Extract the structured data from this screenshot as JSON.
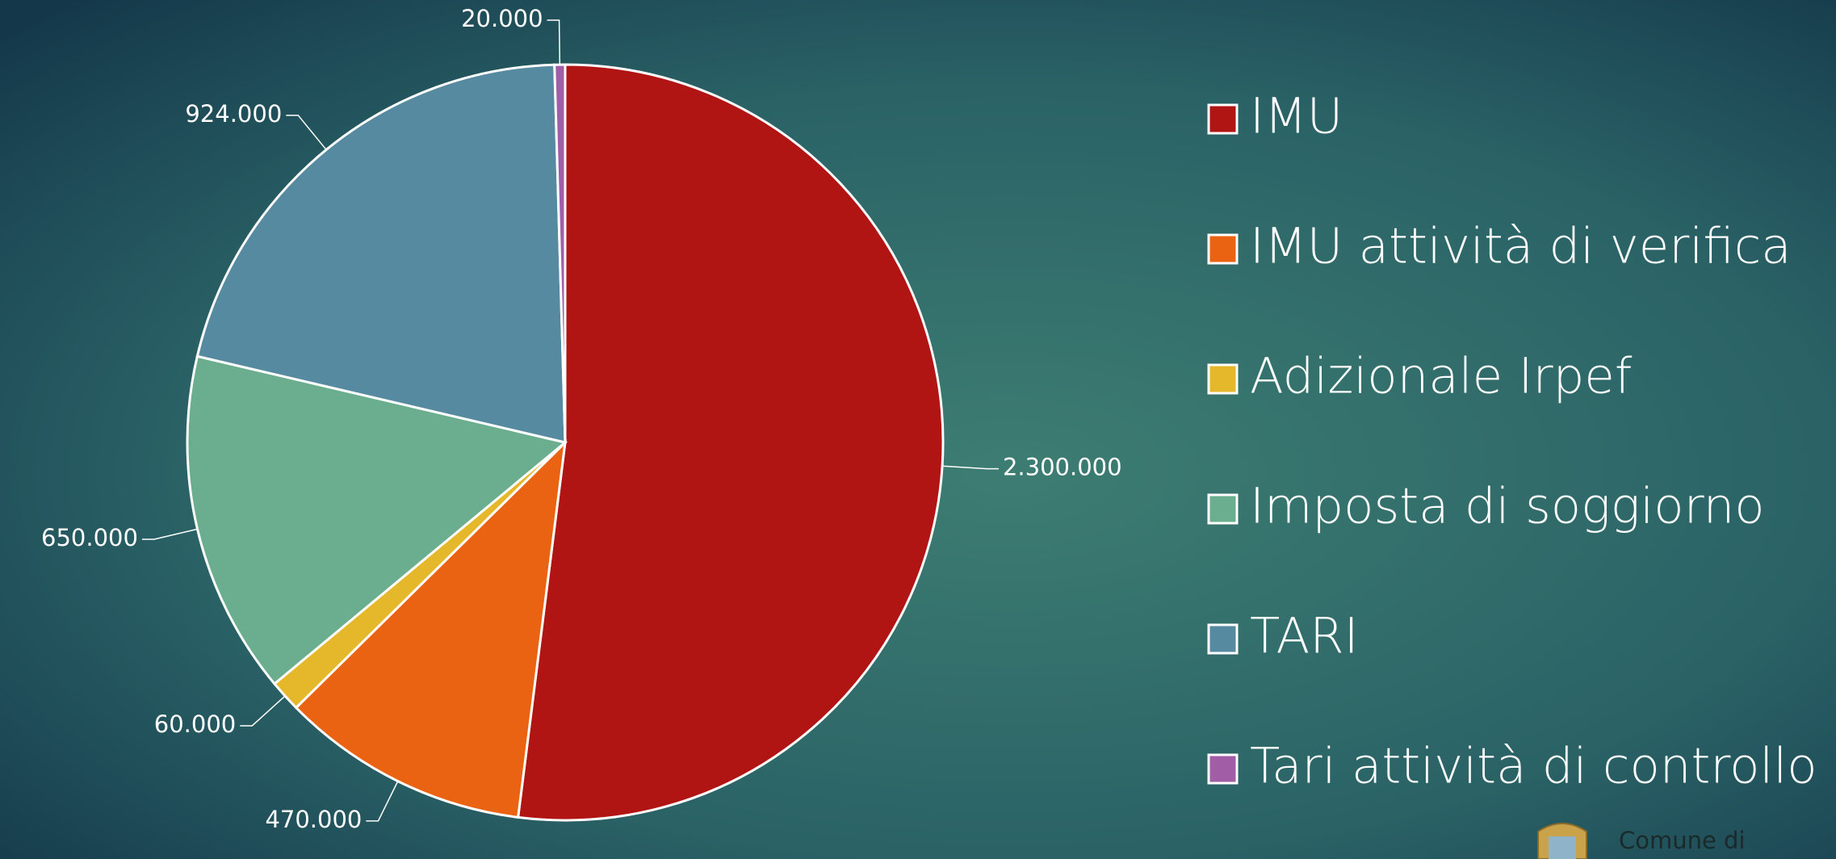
{
  "chart_data": {
    "type": "pie",
    "categories": [
      "IMU",
      "IMU attività di verifica",
      "Adizionale Irpef",
      "Imposta di soggiorno",
      "TARI",
      "Tari attività di controllo"
    ],
    "values": [
      2300000,
      470000,
      60000,
      650000,
      924000,
      20000
    ],
    "value_labels": [
      "2.300.000",
      "470.000",
      "60.000",
      "650.000",
      "924.000",
      "20.000"
    ],
    "colors": [
      "#b01413",
      "#e96312",
      "#e5b72a",
      "#6aae8f",
      "#568aa0",
      "#a15ea6"
    ],
    "legend": "right"
  },
  "footer": {
    "text": "Comune di"
  }
}
